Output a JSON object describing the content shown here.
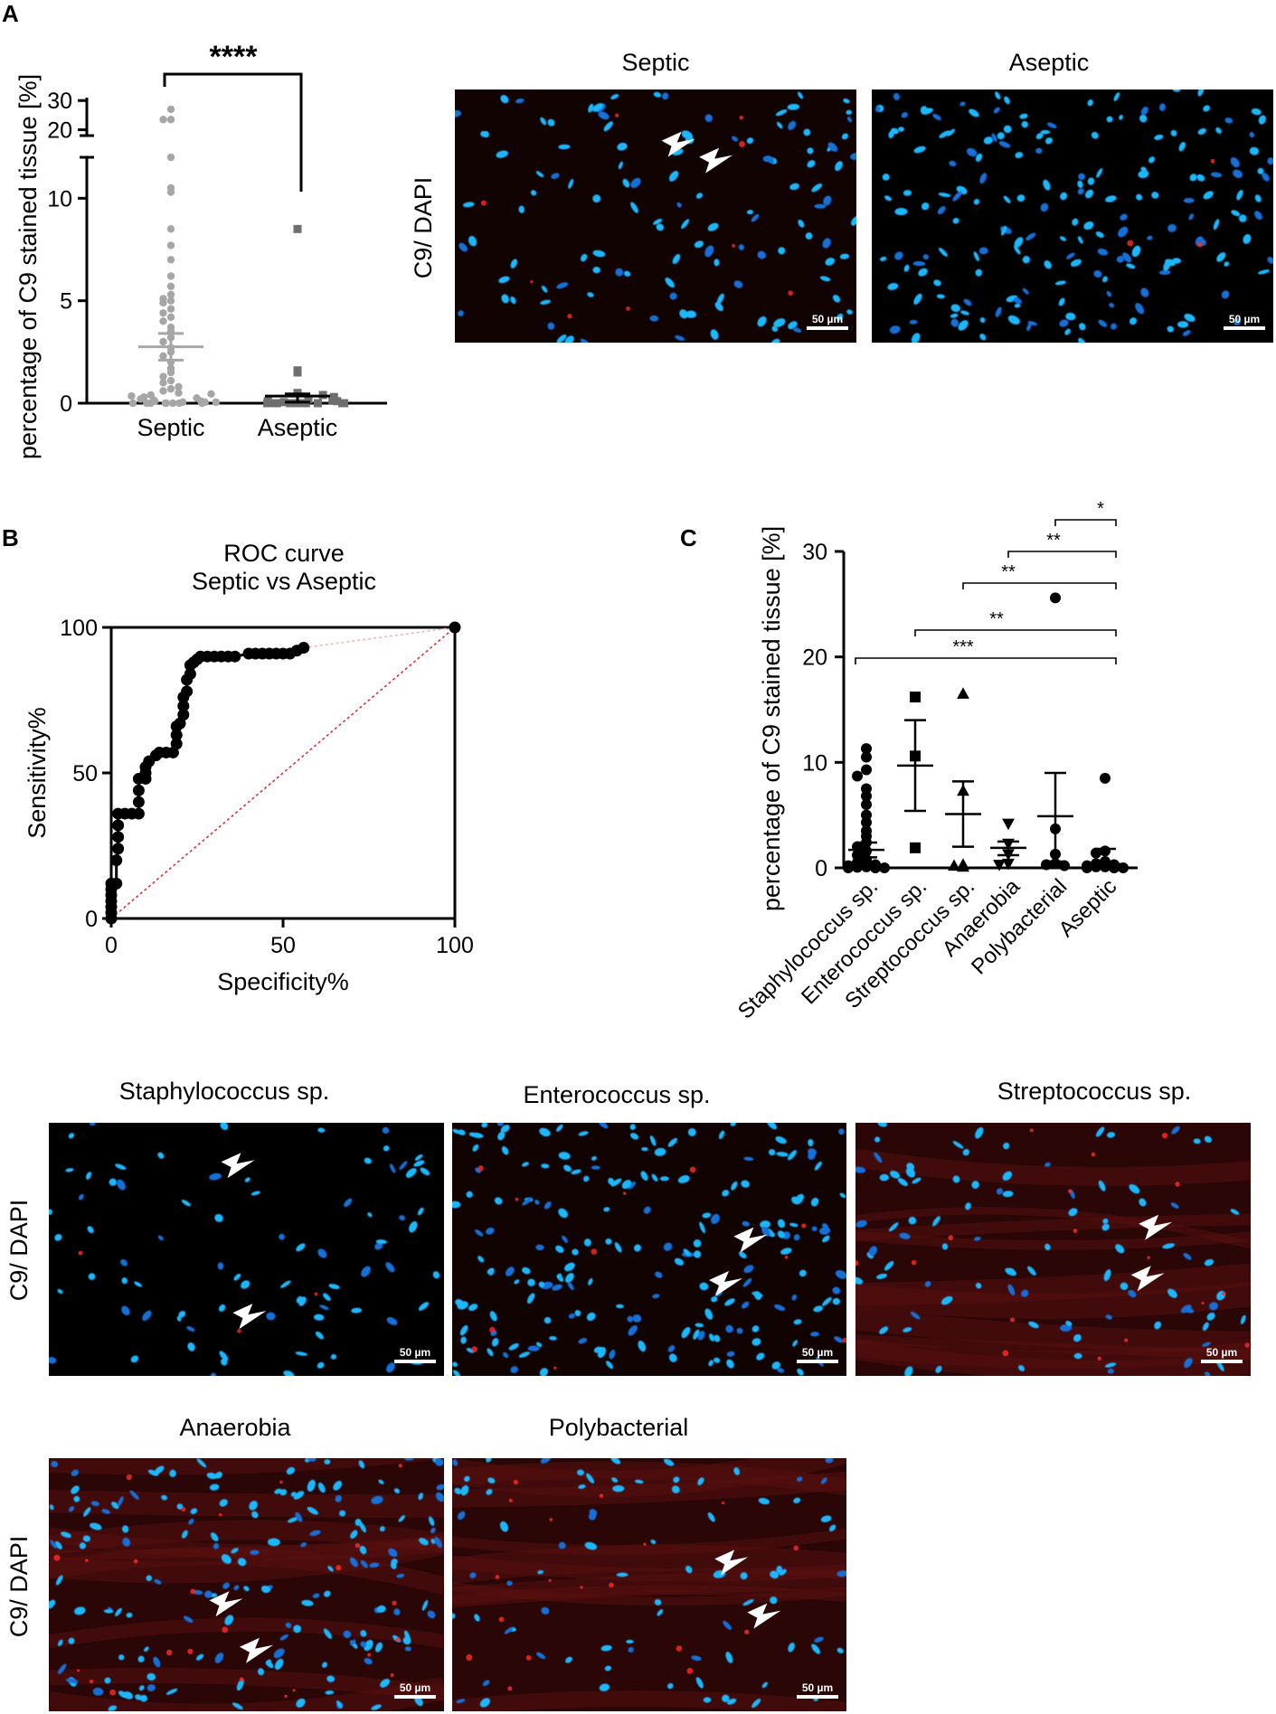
{
  "panels": {
    "a": "A",
    "b": "B",
    "c": "C"
  },
  "micro": {
    "stain_label": "C9/ DAPI",
    "scale_bar": "50 µm",
    "titles_top": [
      "Septic",
      "Aseptic"
    ],
    "titles_bottom_row1": [
      "Staphylococcus sp.",
      "Enterococcus sp.",
      "Streptococcus sp."
    ],
    "titles_bottom_row2": [
      "Anaerobia",
      "Polybacterial"
    ]
  },
  "chart_data": [
    {
      "id": "A",
      "type": "scatter",
      "ylabel": "percentage of C9 stained tissue [%]",
      "categories": [
        "Septic",
        "Aseptic"
      ],
      "yaxis_segments": [
        {
          "range": [
            0,
            12
          ],
          "ticks": [
            0,
            5,
            10
          ]
        },
        {
          "range": [
            18,
            31
          ],
          "ticks": [
            20,
            30
          ]
        }
      ],
      "series": [
        {
          "category": "Septic",
          "marker": "circle",
          "color": "#a6a6a6",
          "mean": 2.75,
          "sem_low": 2.1,
          "sem_high": 3.4,
          "values": [
            27,
            23.5,
            23.5,
            12,
            10.5,
            10.3,
            8.5,
            7.7,
            7,
            6.2,
            5.7,
            5.3,
            5.1,
            5.0,
            4.9,
            4.6,
            4.4,
            4.2,
            4.0,
            3.7,
            3.5,
            3.2,
            3.0,
            2.7,
            2.5,
            2.3,
            2.0,
            1.7,
            1.5,
            1.3,
            1.1,
            1.0,
            0.8,
            0.7,
            0.6,
            0.5,
            0.45,
            0.4,
            0.35,
            0.3,
            0.25,
            0.2,
            0.15,
            0.1,
            0.1,
            0.05,
            0.05,
            0.05,
            0.0,
            0.0,
            0.0,
            0.0,
            0.0,
            0.0,
            0.0,
            0.0
          ]
        },
        {
          "category": "Aseptic",
          "marker": "square",
          "color": "#6e6e6e",
          "mean": 0.35,
          "sem_low": 0.05,
          "sem_high": 0.45,
          "values": [
            8.5,
            1.6,
            1.5,
            0.5,
            0.4,
            0.3,
            0.2,
            0.15,
            0.1,
            0.1,
            0.05,
            0.0,
            0.0,
            0.0,
            0.0,
            0.0,
            0.0,
            0.0,
            0.0,
            0.0,
            0.0,
            0.0
          ]
        }
      ],
      "significance": "****"
    },
    {
      "id": "B",
      "type": "line",
      "title": "ROC curve",
      "subtitle": "Septic vs Aseptic",
      "xlabel": "Specificity%",
      "ylabel": "Sensitivity%",
      "xlim": [
        0,
        100
      ],
      "ylim": [
        0,
        100
      ],
      "xticks": [
        0,
        50,
        100
      ],
      "yticks": [
        0,
        50,
        100
      ],
      "series": [
        {
          "name": "",
          "color": "#000000",
          "points": [
            [
              0,
              0
            ],
            [
              0,
              2
            ],
            [
              0,
              4
            ],
            [
              0,
              6
            ],
            [
              0,
              8
            ],
            [
              0,
              10
            ],
            [
              0,
              12
            ],
            [
              1.5,
              12
            ],
            [
              1.5,
              20
            ],
            [
              2,
              24
            ],
            [
              2,
              28
            ],
            [
              2,
              32
            ],
            [
              2,
              36
            ],
            [
              4,
              36
            ],
            [
              6,
              36
            ],
            [
              8,
              36
            ],
            [
              8,
              40
            ],
            [
              8,
              44
            ],
            [
              8,
              48
            ],
            [
              10,
              48
            ],
            [
              10,
              50
            ],
            [
              10,
              52
            ],
            [
              11,
              54
            ],
            [
              13,
              56
            ],
            [
              14,
              57
            ],
            [
              16,
              57
            ],
            [
              18,
              57
            ],
            [
              19,
              60
            ],
            [
              19,
              63
            ],
            [
              19,
              66
            ],
            [
              20,
              67
            ],
            [
              21,
              70
            ],
            [
              21,
              73
            ],
            [
              21,
              76
            ],
            [
              22,
              78
            ],
            [
              22,
              82
            ],
            [
              23,
              84
            ],
            [
              23,
              87
            ],
            [
              24,
              88
            ],
            [
              25,
              89
            ],
            [
              26,
              90
            ],
            [
              28,
              90
            ],
            [
              30,
              90
            ],
            [
              32,
              90
            ],
            [
              34,
              90
            ],
            [
              36,
              90
            ],
            [
              40,
              91
            ],
            [
              42,
              91
            ],
            [
              44,
              91
            ],
            [
              46,
              91
            ],
            [
              48,
              91
            ],
            [
              50,
              91
            ],
            [
              52,
              91
            ],
            [
              54,
              92
            ],
            [
              56,
              93
            ]
          ]
        },
        {
          "name": "",
          "color": "#ffb0b0",
          "style": "dotted",
          "points": [
            [
              56,
              93
            ],
            [
              100,
              100
            ]
          ]
        },
        {
          "name": "",
          "color": "#e03030",
          "style": "dotted",
          "points": [
            [
              0,
              0
            ],
            [
              100,
              100
            ]
          ]
        }
      ],
      "end_point": [
        100,
        100
      ]
    },
    {
      "id": "C",
      "type": "scatter",
      "ylabel": "percentage of C9 stained tissue [%]",
      "ylim": [
        0,
        30
      ],
      "yticks": [
        0,
        10,
        20,
        30
      ],
      "categories": [
        "Staphylococcus sp.",
        "Enterococcus sp.",
        "Streptococcus sp.",
        "Anaerobia",
        "Polybacterial",
        "Aseptic"
      ],
      "series": [
        {
          "category": "Staphylococcus sp.",
          "marker": "circle",
          "mean": 1.7,
          "sem_low": 1.0,
          "sem_high": 2.4,
          "values": [
            11.3,
            10.5,
            9.3,
            8.7,
            7.5,
            6.8,
            6.0,
            5.0,
            4.3,
            3.5,
            3.0,
            2.4,
            2.0,
            1.6,
            1.2,
            0.8,
            0.5,
            0.3,
            0.2,
            0.1,
            0.05,
            0.0,
            0.0,
            0.0
          ]
        },
        {
          "category": "Enterococcus sp.",
          "marker": "square",
          "mean": 9.7,
          "sem_low": 5.4,
          "sem_high": 14.0,
          "values": [
            16.2,
            10.6,
            1.9
          ]
        },
        {
          "category": "Streptococcus sp.",
          "marker": "triangle-up",
          "mean": 5.1,
          "sem_low": 2.0,
          "sem_high": 8.2,
          "values": [
            16.5,
            7.3,
            0.3,
            0.2,
            0.1
          ]
        },
        {
          "category": "Anaerobia",
          "marker": "triangle-down",
          "mean": 1.9,
          "sem_low": 1.2,
          "sem_high": 2.5,
          "values": [
            4.2,
            2.3,
            1.3,
            0.4,
            0.3
          ]
        },
        {
          "category": "Polybacterial",
          "marker": "circle",
          "mean": 4.9,
          "sem_low": 0.6,
          "sem_high": 9.0,
          "values": [
            25.6,
            3.7,
            1.3,
            0.4,
            0.3,
            0.2
          ]
        },
        {
          "category": "Aseptic",
          "marker": "circle",
          "mean": 0.35,
          "sem_low": 0.05,
          "sem_high": 1.8,
          "values": [
            8.5,
            1.6,
            1.4,
            0.6,
            0.4,
            0.3,
            0.2,
            0.1,
            0.1,
            0.0,
            0.0,
            0.0
          ]
        }
      ],
      "significance": [
        {
          "from": "Polybacterial",
          "to": "Aseptic",
          "label": "*"
        },
        {
          "from": "Anaerobia",
          "to": "Aseptic",
          "label": "**"
        },
        {
          "from": "Streptococcus sp.",
          "to": "Aseptic",
          "label": "**"
        },
        {
          "from": "Enterococcus sp.",
          "to": "Aseptic",
          "label": "**"
        },
        {
          "from": "Staphylococcus sp.",
          "to": "Aseptic",
          "label": "***"
        }
      ]
    }
  ]
}
